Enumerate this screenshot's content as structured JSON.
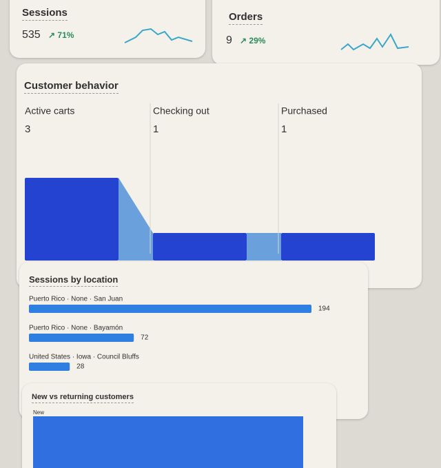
{
  "metrics": [
    {
      "title": "Sessions",
      "value": "535",
      "change": "71%"
    },
    {
      "title": "Orders",
      "value": "9",
      "change": "29%"
    }
  ],
  "behavior": {
    "title": "Customer behavior",
    "stages": [
      {
        "label": "Active carts",
        "value": 3
      },
      {
        "label": "Checking out",
        "value": 1
      },
      {
        "label": "Purchased",
        "value": 1
      }
    ]
  },
  "locations": {
    "title": "Sessions by location",
    "rows": [
      {
        "label": "Puerto Rico · None · San Juan",
        "value": 194
      },
      {
        "label": "Puerto Rico · None · Bayamón",
        "value": 72
      },
      {
        "label": "United States · Iowa · Council Bluffs",
        "value": 28
      }
    ]
  },
  "customers": {
    "title": "New vs returning customers",
    "legend": "New"
  }
}
